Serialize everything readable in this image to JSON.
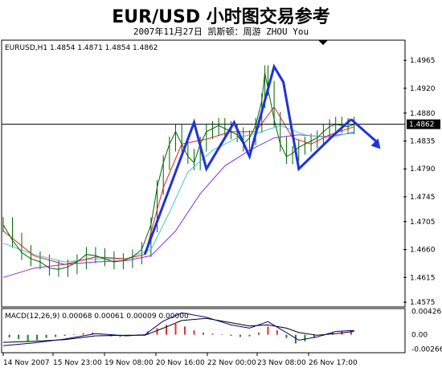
{
  "header": {
    "title": "EUR/USD 小时图交易参考",
    "subtitle": "2007年11月27日 凯斯顿：周游 ZHOU You"
  },
  "colors": {
    "frame": "#000000",
    "price": "#006400",
    "current_line": "#000000",
    "trend": "#1e32dc",
    "ma_fast": "#e02020",
    "ma_mid": "#40c8c8",
    "ma_slow": "#8a2be2",
    "macd_line": "#000080",
    "macd_hist_pos": "#e03030",
    "macd_hist_neg": "#208020"
  },
  "chart_data": [
    {
      "type": "line",
      "title": "EURUSD,H1 1.4854 1.4871 1.4854 1.4862",
      "current_price_label": "1.4862",
      "current_price": 1.4862,
      "ylim": [
        1.457,
        1.4995
      ],
      "y_ticks": [
        "1.4965",
        "1.4920",
        "1.4880",
        "1.4835",
        "1.4790",
        "1.4745",
        "1.4705",
        "1.4660",
        "1.4615",
        "1.4575"
      ],
      "x_ticks": [
        "14 Nov 2007",
        "15 Nov 23:00",
        "19 Nov 08:00",
        "20 Nov 16:00",
        "22 Nov 00:00",
        "23 Nov 08:00",
        "26 Nov 17:00"
      ],
      "xlim": [
        0,
        130
      ],
      "price": [
        [
          0,
          1.47
        ],
        [
          3,
          1.4675
        ],
        [
          6,
          1.4655
        ],
        [
          9,
          1.4645
        ],
        [
          12,
          1.464
        ],
        [
          15,
          1.463
        ],
        [
          18,
          1.4628
        ],
        [
          21,
          1.4632
        ],
        [
          24,
          1.464
        ],
        [
          27,
          1.4652
        ],
        [
          30,
          1.465
        ],
        [
          33,
          1.4645
        ],
        [
          36,
          1.464
        ],
        [
          39,
          1.4642
        ],
        [
          42,
          1.4648
        ],
        [
          45,
          1.466
        ],
        [
          48,
          1.47
        ],
        [
          50,
          1.476
        ],
        [
          52,
          1.48
        ],
        [
          54,
          1.483
        ],
        [
          56,
          1.485
        ],
        [
          58,
          1.483
        ],
        [
          60,
          1.481
        ],
        [
          62,
          1.48
        ],
        [
          64,
          1.483
        ],
        [
          66,
          1.485
        ],
        [
          68,
          1.4855
        ],
        [
          70,
          1.486
        ],
        [
          72,
          1.4855
        ],
        [
          74,
          1.485
        ],
        [
          76,
          1.4845
        ],
        [
          78,
          1.483
        ],
        [
          80,
          1.484
        ],
        [
          82,
          1.486
        ],
        [
          84,
          1.49
        ],
        [
          85,
          1.4945
        ],
        [
          86,
          1.492
        ],
        [
          88,
          1.487
        ],
        [
          90,
          1.483
        ],
        [
          92,
          1.481
        ],
        [
          94,
          1.4815
        ],
        [
          96,
          1.4825
        ],
        [
          98,
          1.483
        ],
        [
          100,
          1.4835
        ],
        [
          102,
          1.484
        ],
        [
          104,
          1.485
        ],
        [
          106,
          1.4858
        ],
        [
          108,
          1.4862
        ],
        [
          110,
          1.486
        ],
        [
          112,
          1.4858
        ],
        [
          114,
          1.4862
        ]
      ],
      "trend_lines": [
        [
          [
            46,
            1.4652
          ],
          [
            62,
            1.4865
          ],
          [
            66,
            1.479
          ],
          [
            75,
            1.4865
          ],
          [
            80,
            1.481
          ],
          [
            88,
            1.4955
          ],
          [
            91,
            1.493
          ],
          [
            96,
            1.479
          ],
          [
            107,
            1.4843
          ],
          [
            113,
            1.487
          ]
        ],
        [
          [
            113,
            1.487
          ],
          [
            121,
            1.4835
          ]
        ]
      ],
      "arrow_head": [
        121,
        1.483
      ],
      "ma_fast": [
        [
          0,
          1.469
        ],
        [
          10,
          1.465
        ],
        [
          20,
          1.4636
        ],
        [
          30,
          1.4648
        ],
        [
          40,
          1.4645
        ],
        [
          46,
          1.4652
        ],
        [
          52,
          1.476
        ],
        [
          58,
          1.483
        ],
        [
          66,
          1.4838
        ],
        [
          74,
          1.485
        ],
        [
          82,
          1.485
        ],
        [
          88,
          1.489
        ],
        [
          94,
          1.484
        ],
        [
          100,
          1.483
        ],
        [
          106,
          1.4845
        ],
        [
          114,
          1.4858
        ]
      ],
      "ma_mid": [
        [
          0,
          1.467
        ],
        [
          10,
          1.4652
        ],
        [
          20,
          1.464
        ],
        [
          30,
          1.4645
        ],
        [
          40,
          1.4645
        ],
        [
          48,
          1.466
        ],
        [
          54,
          1.472
        ],
        [
          60,
          1.4785
        ],
        [
          68,
          1.482
        ],
        [
          76,
          1.484
        ],
        [
          84,
          1.485
        ],
        [
          90,
          1.486
        ],
        [
          98,
          1.4845
        ],
        [
          106,
          1.484
        ],
        [
          114,
          1.485
        ]
      ],
      "ma_slow": [
        [
          0,
          1.4615
        ],
        [
          10,
          1.463
        ],
        [
          20,
          1.4636
        ],
        [
          30,
          1.464
        ],
        [
          40,
          1.4642
        ],
        [
          48,
          1.465
        ],
        [
          56,
          1.469
        ],
        [
          64,
          1.475
        ],
        [
          72,
          1.4795
        ],
        [
          80,
          1.482
        ],
        [
          88,
          1.484
        ],
        [
          96,
          1.4845
        ],
        [
          104,
          1.4842
        ],
        [
          114,
          1.4848
        ]
      ]
    },
    {
      "type": "bar",
      "title": "MACD(12,26,9) 0.00068 0.00061 0.00009 0.00000",
      "ylim": [
        -0.003,
        0.0045
      ],
      "y_ticks": [
        "0.00426",
        "0.00",
        "-0.00266"
      ],
      "histogram": [
        [
          2,
          -0.0005
        ],
        [
          5,
          -0.0008
        ],
        [
          8,
          -0.0012
        ],
        [
          11,
          -0.001
        ],
        [
          14,
          -0.0006
        ],
        [
          17,
          -0.0004
        ],
        [
          20,
          -0.0002
        ],
        [
          23,
          0.0001
        ],
        [
          26,
          0.0003
        ],
        [
          29,
          0.0004
        ],
        [
          32,
          0.0001
        ],
        [
          35,
          -0.0003
        ],
        [
          38,
          -0.0004
        ],
        [
          41,
          -0.0002
        ],
        [
          44,
          0.0001
        ],
        [
          47,
          0.0006
        ],
        [
          50,
          0.0012
        ],
        [
          53,
          0.0018
        ],
        [
          56,
          0.002
        ],
        [
          59,
          0.0015
        ],
        [
          62,
          0.0008
        ],
        [
          65,
          0.0004
        ],
        [
          68,
          0.0002
        ],
        [
          71,
          0.0001
        ],
        [
          74,
          -0.0002
        ],
        [
          77,
          -0.0004
        ],
        [
          80,
          -0.0003
        ],
        [
          83,
          0.0004
        ],
        [
          86,
          0.0015
        ],
        [
          89,
          0.0008
        ],
        [
          92,
          -0.0006
        ],
        [
          95,
          -0.0016
        ],
        [
          98,
          -0.0012
        ],
        [
          101,
          -0.0006
        ],
        [
          104,
          -0.0002
        ],
        [
          107,
          0.0004
        ],
        [
          110,
          0.0006
        ],
        [
          113,
          0.0007
        ]
      ],
      "macd_line": [
        [
          0,
          -0.002
        ],
        [
          10,
          -0.0015
        ],
        [
          20,
          -0.0008
        ],
        [
          30,
          0.0002
        ],
        [
          40,
          -0.0002
        ],
        [
          46,
          0.0
        ],
        [
          52,
          0.0025
        ],
        [
          58,
          0.004
        ],
        [
          66,
          0.0032
        ],
        [
          74,
          0.0018
        ],
        [
          80,
          0.0012
        ],
        [
          86,
          0.0024
        ],
        [
          92,
          0.0004
        ],
        [
          96,
          -0.001
        ],
        [
          102,
          -0.0004
        ],
        [
          108,
          0.0006
        ],
        [
          114,
          0.0008
        ]
      ],
      "signal_line": [
        [
          0,
          -0.0014
        ],
        [
          10,
          -0.0012
        ],
        [
          20,
          -0.0009
        ],
        [
          30,
          -0.0002
        ],
        [
          40,
          -0.0001
        ],
        [
          46,
          -0.0001
        ],
        [
          52,
          0.0012
        ],
        [
          58,
          0.0026
        ],
        [
          66,
          0.003
        ],
        [
          74,
          0.0022
        ],
        [
          80,
          0.0016
        ],
        [
          86,
          0.0018
        ],
        [
          92,
          0.0012
        ],
        [
          96,
          0.0004
        ],
        [
          102,
          -0.0001
        ],
        [
          108,
          0.0002
        ],
        [
          114,
          0.0006
        ]
      ]
    }
  ]
}
